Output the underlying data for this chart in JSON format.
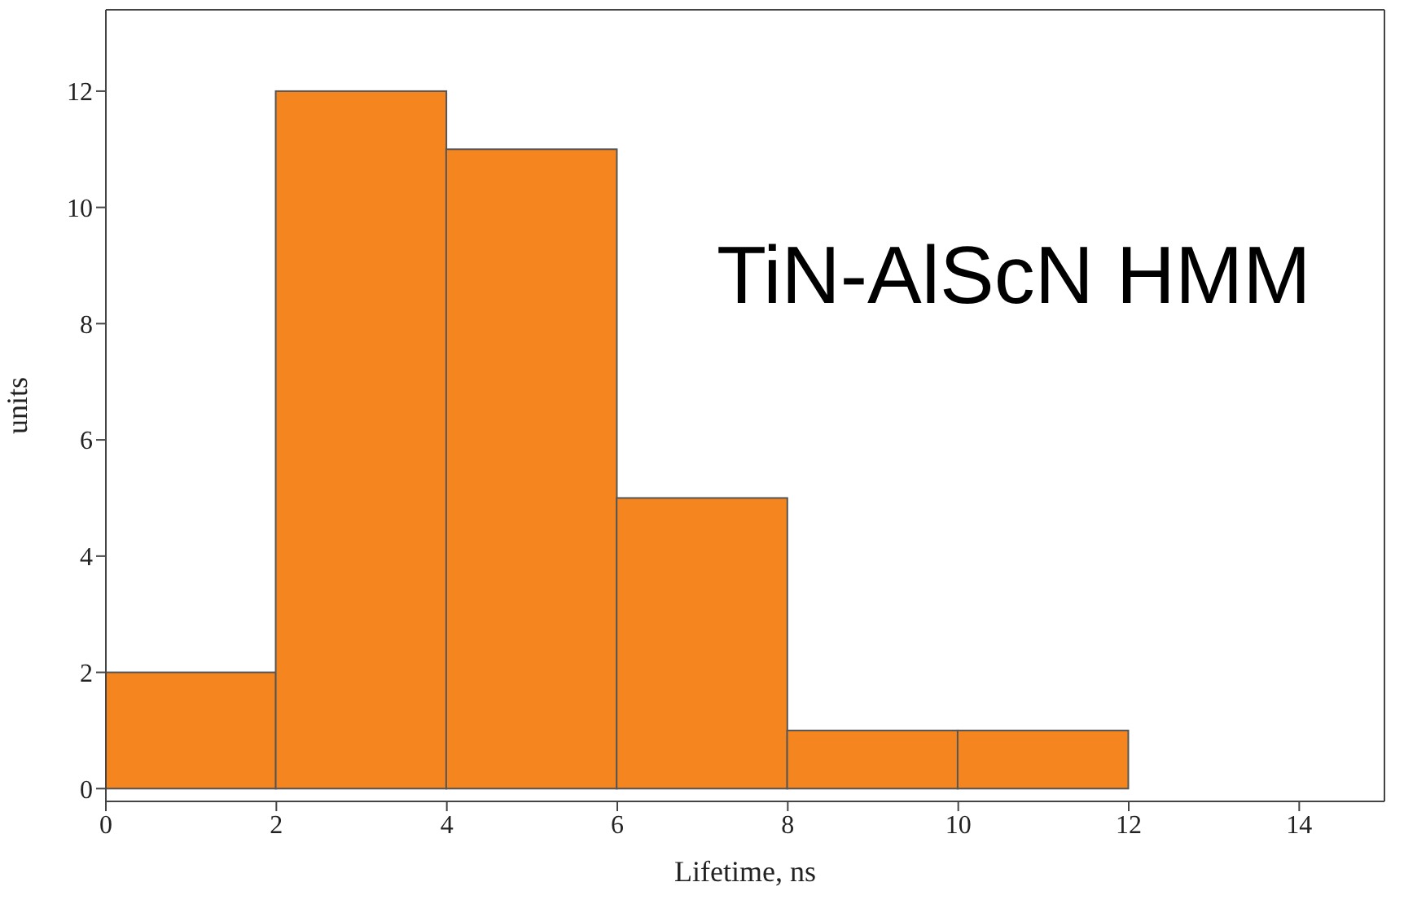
{
  "chart_data": {
    "type": "histogram",
    "xlabel": "Lifetime, ns",
    "ylabel": "units",
    "bins": [
      0,
      2,
      4,
      6,
      8,
      10,
      12
    ],
    "values": [
      2,
      12,
      11,
      5,
      1,
      1
    ],
    "color": "#f5861f",
    "xlim": [
      0,
      15
    ],
    "xticks": [
      0,
      2,
      4,
      6,
      8,
      10,
      12,
      14
    ],
    "ylim": [
      -0.22,
      13.4
    ],
    "yticks": [
      0,
      2,
      4,
      6,
      8,
      10,
      12
    ],
    "grid": false,
    "annotations": [
      "TiN-AlScN HMM"
    ]
  }
}
